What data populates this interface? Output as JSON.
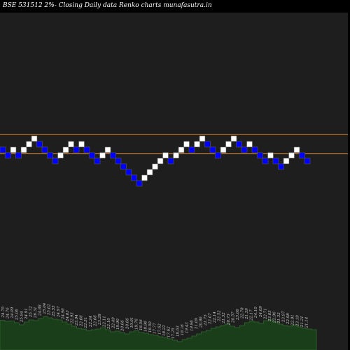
{
  "title": "BSE 531512  2%-  Closing Daily data  Renko  charts munafasutra.in",
  "colors": {
    "background": "#000000",
    "plot_background": "#1e1e1e",
    "up_brick": "#ffffff",
    "down_brick": "#0000ff",
    "brick_outline": "#555555",
    "reference_line": "#cc7722",
    "volume_fill": "#1a3d1a",
    "volume_stroke": "#2f6a2f",
    "label_color": "#cccccc"
  },
  "chart_data": {
    "type": "renko",
    "title": "BSE 531512  2%-  Closing Daily data  Renko  charts munafasutra.in",
    "brick_percent": 2,
    "bricks": [
      {
        "level": 0,
        "dir": "down"
      },
      {
        "level": -1,
        "dir": "down"
      },
      {
        "level": 0,
        "dir": "up"
      },
      {
        "level": -1,
        "dir": "down"
      },
      {
        "level": 0,
        "dir": "up"
      },
      {
        "level": 1,
        "dir": "up"
      },
      {
        "level": 2,
        "dir": "up"
      },
      {
        "level": 1,
        "dir": "down"
      },
      {
        "level": 0,
        "dir": "down"
      },
      {
        "level": -1,
        "dir": "down"
      },
      {
        "level": -2,
        "dir": "down"
      },
      {
        "level": -1,
        "dir": "up"
      },
      {
        "level": 0,
        "dir": "up"
      },
      {
        "level": 1,
        "dir": "up"
      },
      {
        "level": 0,
        "dir": "down"
      },
      {
        "level": 1,
        "dir": "up"
      },
      {
        "level": 0,
        "dir": "down"
      },
      {
        "level": -1,
        "dir": "down"
      },
      {
        "level": -2,
        "dir": "down"
      },
      {
        "level": -1,
        "dir": "up"
      },
      {
        "level": 0,
        "dir": "up"
      },
      {
        "level": -1,
        "dir": "down"
      },
      {
        "level": -2,
        "dir": "down"
      },
      {
        "level": -3,
        "dir": "down"
      },
      {
        "level": -4,
        "dir": "down"
      },
      {
        "level": -5,
        "dir": "down"
      },
      {
        "level": -6,
        "dir": "down"
      },
      {
        "level": -5,
        "dir": "up"
      },
      {
        "level": -4,
        "dir": "up"
      },
      {
        "level": -3,
        "dir": "up"
      },
      {
        "level": -2,
        "dir": "up"
      },
      {
        "level": -1,
        "dir": "up"
      },
      {
        "level": -2,
        "dir": "down"
      },
      {
        "level": -1,
        "dir": "up"
      },
      {
        "level": 0,
        "dir": "up"
      },
      {
        "level": 1,
        "dir": "up"
      },
      {
        "level": 0,
        "dir": "down"
      },
      {
        "level": 1,
        "dir": "up"
      },
      {
        "level": 2,
        "dir": "up"
      },
      {
        "level": 1,
        "dir": "down"
      },
      {
        "level": 0,
        "dir": "down"
      },
      {
        "level": -1,
        "dir": "down"
      },
      {
        "level": 0,
        "dir": "up"
      },
      {
        "level": 1,
        "dir": "up"
      },
      {
        "level": 2,
        "dir": "up"
      },
      {
        "level": 1,
        "dir": "down"
      },
      {
        "level": 0,
        "dir": "down"
      },
      {
        "level": 1,
        "dir": "up"
      },
      {
        "level": 0,
        "dir": "down"
      },
      {
        "level": -1,
        "dir": "down"
      },
      {
        "level": -2,
        "dir": "down"
      },
      {
        "level": -1,
        "dir": "up"
      },
      {
        "level": -2,
        "dir": "down"
      },
      {
        "level": -3,
        "dir": "down"
      },
      {
        "level": -2,
        "dir": "up"
      },
      {
        "level": -1,
        "dir": "up"
      },
      {
        "level": 0,
        "dir": "up"
      },
      {
        "level": -1,
        "dir": "down"
      },
      {
        "level": -2,
        "dir": "down"
      }
    ],
    "reference_levels": [
      2.7,
      -0.7
    ],
    "volume_labels": [
      "24.75",
      "24.76",
      "24.09",
      "25.06",
      "25.94",
      "24.91",
      "25.72",
      "26.31",
      "24.88",
      "25.04",
      "25.62",
      "25.55",
      "24.97",
      "24.96",
      "24.03",
      "22.93",
      "23.94",
      "22.66",
      "22.51",
      "22.24",
      "22.66",
      "23.28",
      "22.11",
      "22.10",
      "22.49",
      "19.90",
      "20.06",
      "20.66",
      "19.01",
      "19.76",
      "18.56",
      "18.96",
      "18.50",
      "17.77",
      "17.62",
      "18.22",
      "17.62",
      "17.25",
      "18.63",
      "18.16",
      "19.43",
      "19.96",
      "21.09",
      "20.86",
      "21.75",
      "22.07",
      "22.14",
      "22.52",
      "21.32",
      "20.73",
      "20.57",
      "23.06",
      "22.78",
      "21.39",
      "22.17",
      "24.10",
      "24.09",
      "22.71",
      "23.05",
      "22.96",
      "21.32",
      "23.97",
      "22.98",
      "22.91",
      "23.19",
      "21.21",
      "21.14"
    ],
    "volume_values": [
      0.85,
      0.82,
      0.83,
      0.78,
      0.72,
      0.8,
      0.86,
      0.84,
      0.9,
      0.95,
      0.92,
      0.88,
      0.86,
      0.8,
      0.74,
      0.68,
      0.62,
      0.6,
      0.55,
      0.58,
      0.6,
      0.64,
      0.58,
      0.52,
      0.54,
      0.5,
      0.46,
      0.52,
      0.55,
      0.5,
      0.48,
      0.44,
      0.42,
      0.38,
      0.36,
      0.32,
      0.28,
      0.24,
      0.3,
      0.34,
      0.4,
      0.46,
      0.52,
      0.56,
      0.62,
      0.66,
      0.7,
      0.74,
      0.68,
      0.64,
      0.7,
      0.78,
      0.82,
      0.8,
      0.76,
      0.84,
      0.86,
      0.8,
      0.74,
      0.7,
      0.68,
      0.72,
      0.66,
      0.62,
      0.6,
      0.58,
      0.55
    ]
  }
}
